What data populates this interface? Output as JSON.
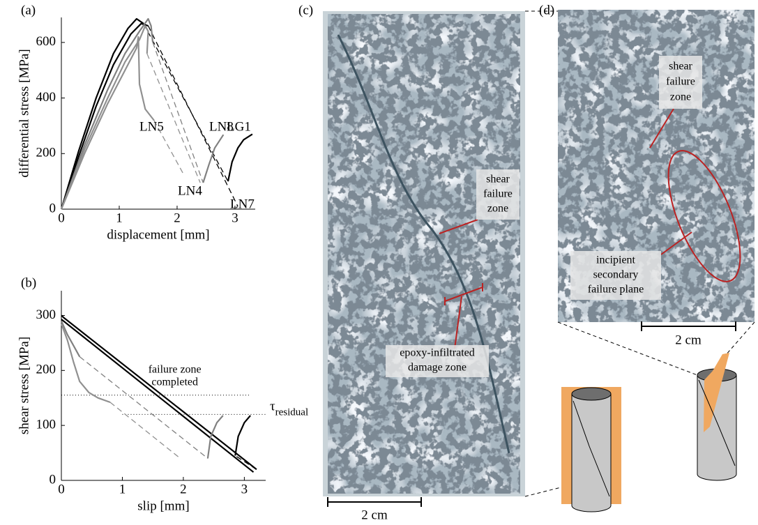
{
  "panels": {
    "a": "(a)",
    "b": "(b)",
    "c": "(c)",
    "d": "(d)"
  },
  "chart_data": [
    {
      "type": "line",
      "xlabel": "displacement [mm]",
      "ylabel": "differential stress [MPa]",
      "xlim": [
        0,
        3.35
      ],
      "ylim": [
        0,
        690
      ],
      "xticks": [
        0,
        1,
        2,
        3
      ],
      "yticks": [
        0,
        200,
        400,
        600
      ],
      "grid": false,
      "series": [
        {
          "name": "LG1",
          "color": "#000000",
          "x": [
            0,
            0.3,
            0.6,
            0.9,
            1.15,
            1.3,
            1.42,
            null,
            2.88,
            2.95,
            3.05,
            3.15,
            3.3
          ],
          "values": [
            0,
            210,
            400,
            560,
            650,
            685,
            668,
            null,
            100,
            170,
            220,
            250,
            270
          ]
        },
        {
          "name": "LN7",
          "color": "#000000",
          "x": [
            0,
            0.3,
            0.6,
            0.9,
            1.2,
            1.38,
            1.5,
            null,
            3.05
          ],
          "values": [
            0,
            190,
            370,
            520,
            630,
            668,
            660,
            null,
            10
          ]
        },
        {
          "name": "LN8",
          "color": "#808080",
          "x": [
            0,
            0.4,
            0.8,
            1.1,
            1.35,
            1.5,
            1.55,
            1.58,
            null,
            2.45,
            2.55,
            2.65,
            2.8
          ],
          "values": [
            0,
            230,
            430,
            560,
            640,
            685,
            660,
            600,
            null,
            95,
            160,
            220,
            268
          ]
        },
        {
          "name": "LN5",
          "color": "#909090",
          "x": [
            0,
            0.4,
            0.8,
            1.1,
            1.3,
            1.33,
            1.35,
            1.45,
            1.6,
            null,
            2.1
          ],
          "values": [
            0,
            200,
            380,
            500,
            580,
            620,
            450,
            360,
            320,
            null,
            130
          ]
        },
        {
          "name": "LN4",
          "color": "#909090",
          "x": [
            0,
            0.4,
            0.8,
            1.1,
            1.35,
            1.45,
            1.5,
            1.48,
            null,
            2.4
          ],
          "values": [
            0,
            215,
            400,
            530,
            610,
            660,
            640,
            560,
            null,
            95
          ]
        }
      ]
    },
    {
      "type": "line",
      "xlabel": "slip [mm]",
      "ylabel": "shear stress [MPa]",
      "xlim": [
        0,
        3.35
      ],
      "ylim": [
        0,
        345
      ],
      "xticks": [
        0,
        1,
        2,
        3
      ],
      "yticks": [
        0,
        100,
        200,
        300
      ],
      "grid": false,
      "hlines": [
        {
          "value": 155,
          "x": [
            0,
            3.1
          ],
          "label": [
            "failure zone",
            "completed"
          ]
        },
        {
          "value": 120,
          "x": [
            1,
            3.35
          ],
          "label": [
            "τ"
          ],
          "sub": "residual"
        }
      ],
      "series": [
        {
          "color": "#000000",
          "x": [
            0,
            0.05,
            3.2,
            null,
            2.85,
            2.9,
            3.0,
            3.1
          ],
          "values": [
            300,
            295,
            20,
            null,
            45,
            80,
            105,
            118
          ]
        },
        {
          "color": "#000000",
          "x": [
            0,
            3.15
          ],
          "values": [
            293,
            15
          ]
        },
        {
          "color": "#808080",
          "x": [
            0,
            0.1,
            0.2,
            0.3,
            null,
            2.4,
            2.45,
            2.55,
            2.65
          ],
          "values": [
            290,
            265,
            245,
            225,
            null,
            40,
            80,
            105,
            118
          ]
        },
        {
          "color": "#909090",
          "x": [
            0,
            0.1,
            0.2,
            0.3,
            0.45,
            0.6,
            0.8,
            null,
            1.95
          ],
          "values": [
            285,
            255,
            215,
            180,
            160,
            150,
            142,
            null,
            40
          ]
        }
      ]
    }
  ],
  "photo_c": {
    "shear_label": [
      "shear",
      "failure",
      "zone"
    ],
    "damage_label": [
      "epoxy-infiltrated",
      "damage zone"
    ],
    "scale_bar": "2 cm"
  },
  "photo_d": {
    "shear_label": [
      "shear",
      "failure",
      "zone"
    ],
    "secondary_label": [
      "incipient",
      "secondary",
      "failure plane"
    ],
    "scale_bar": "2 cm"
  }
}
